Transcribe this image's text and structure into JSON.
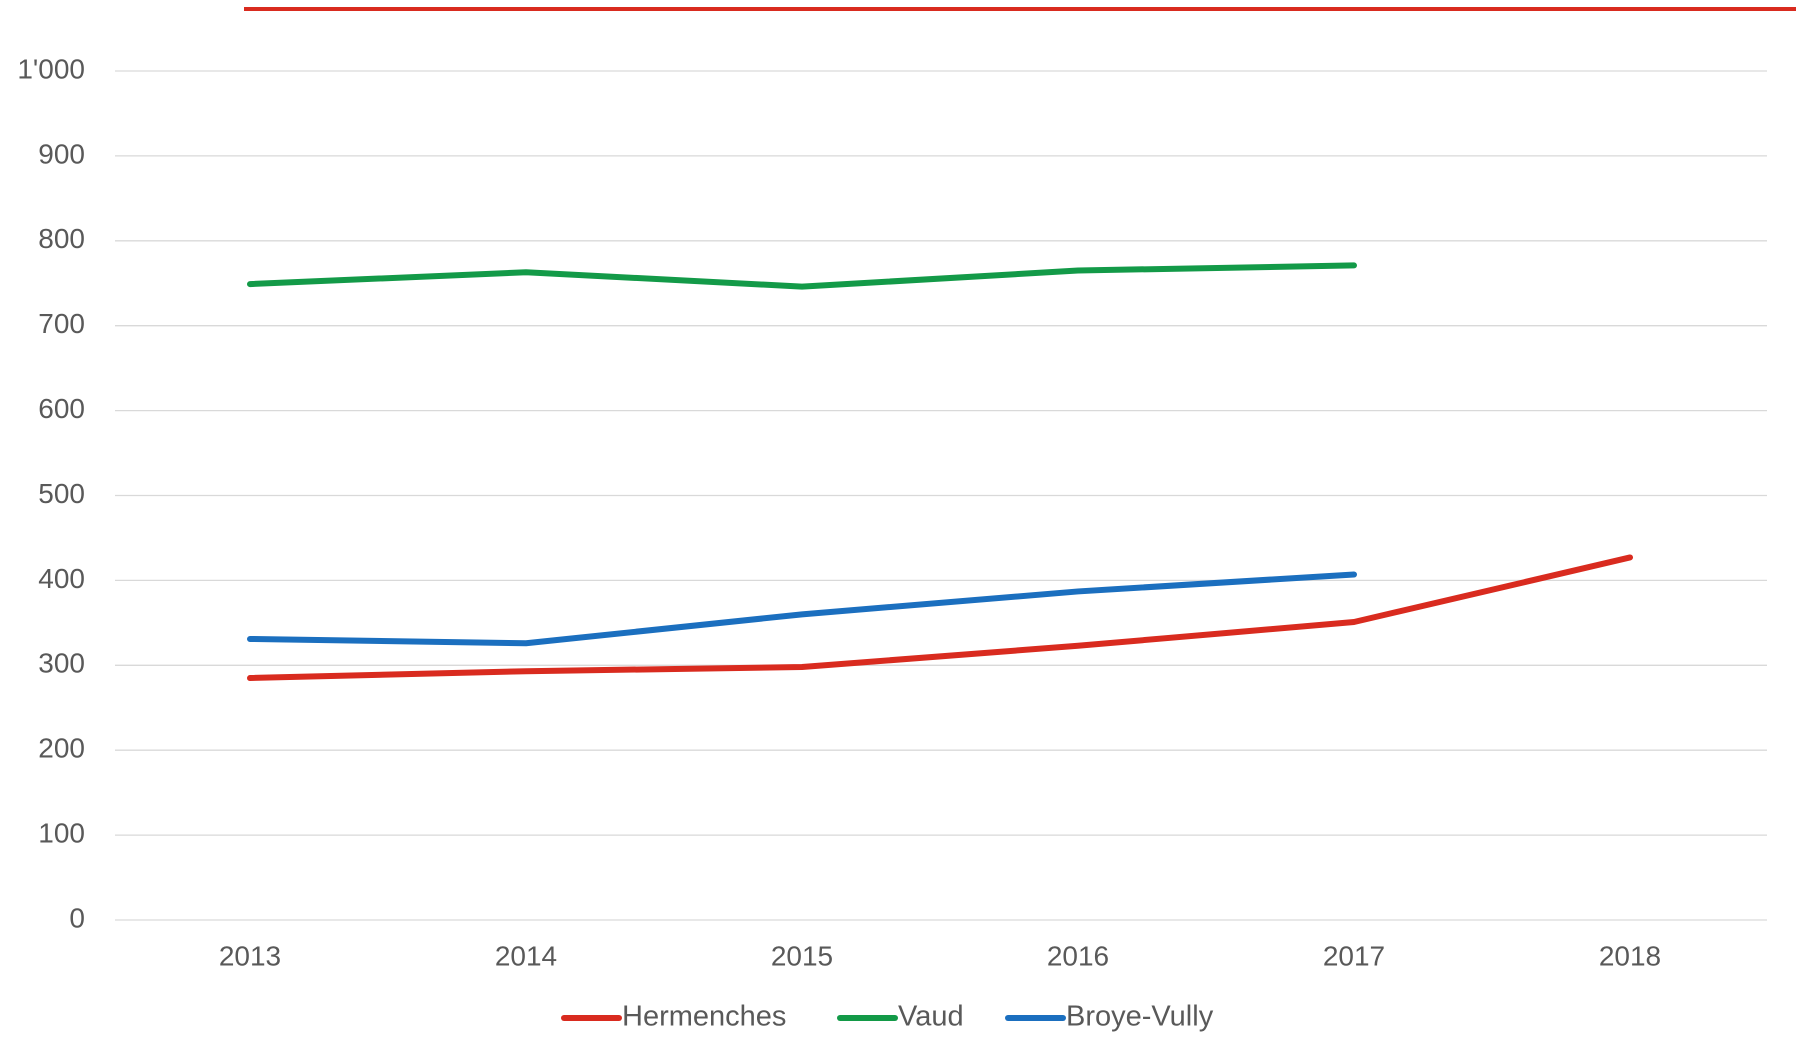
{
  "chart_data": {
    "type": "line",
    "categories": [
      "2013",
      "2014",
      "2015",
      "2016",
      "2017",
      "2018"
    ],
    "series": [
      {
        "name": "Hermenches",
        "color": "#d92b1f",
        "values": [
          285,
          293,
          298,
          323,
          351,
          427
        ]
      },
      {
        "name": "Vaud",
        "color": "#139a48",
        "values": [
          749,
          763,
          746,
          765,
          771,
          null
        ]
      },
      {
        "name": "Broye-Vully",
        "color": "#1b6fbf",
        "values": [
          331,
          326,
          360,
          387,
          407,
          null
        ]
      }
    ],
    "ylim": [
      0,
      1000
    ],
    "yticks": [
      0,
      100,
      200,
      300,
      400,
      500,
      600,
      700,
      800,
      900,
      {
        "value": 1000,
        "label": "1'000"
      }
    ],
    "grid": true,
    "legend": "bottom"
  }
}
